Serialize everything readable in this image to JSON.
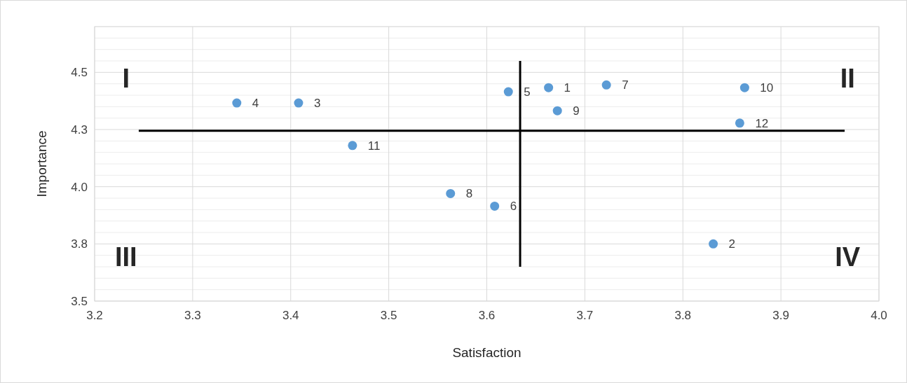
{
  "chart_data": {
    "type": "scatter",
    "xlabel": "Satisfaction",
    "ylabel": "Importance",
    "xlim": [
      3.2,
      4.0
    ],
    "xticks": [
      3.2,
      3.3,
      3.4,
      3.5,
      3.6,
      3.7,
      3.8,
      3.9,
      {
        "value": 4.0,
        "label": "4.0"
      }
    ],
    "ylim": [
      3.5,
      4.7
    ],
    "yticks": [
      3.5,
      {
        "value": 3.55,
        "label": null
      },
      {
        "value": 3.6,
        "label": null
      },
      {
        "value": 3.65,
        "label": null
      },
      {
        "value": 3.7,
        "label": null
      },
      {
        "value": 3.75,
        "label": "3.8"
      },
      {
        "value": 3.8,
        "label": null
      },
      {
        "value": 3.85,
        "label": null
      },
      {
        "value": 3.9,
        "label": null
      },
      {
        "value": 3.95,
        "label": null
      },
      {
        "value": 4.0,
        "label": "4.0"
      },
      {
        "value": 4.05,
        "label": null
      },
      {
        "value": 4.1,
        "label": null
      },
      {
        "value": 4.15,
        "label": null
      },
      {
        "value": 4.2,
        "label": null
      },
      {
        "value": 4.25,
        "label": "4.3"
      },
      {
        "value": 4.3,
        "label": null
      },
      {
        "value": 4.35,
        "label": null
      },
      {
        "value": 4.4,
        "label": null
      },
      {
        "value": 4.45,
        "label": null
      },
      4.5,
      {
        "value": 4.55,
        "label": null
      },
      {
        "value": 4.6,
        "label": null
      },
      {
        "value": 4.65,
        "label": null
      },
      {
        "value": 4.7,
        "label": null
      }
    ],
    "grid": true,
    "series": [
      {
        "color": "#5b9bd5",
        "marker": "circle",
        "x": [
          3.663,
          3.831,
          3.408,
          3.345,
          3.622,
          3.608,
          3.722,
          3.563,
          3.672,
          3.863,
          3.463,
          3.858
        ],
        "values": [
          4.433,
          3.75,
          4.366,
          4.366,
          4.415,
          3.915,
          4.445,
          3.97,
          4.332,
          4.433,
          4.18,
          4.278
        ]
      },
      {
        "type": "line",
        "color": "#000000",
        "x": [
          3.245,
          3.965
        ],
        "values": [
          4.245,
          4.245
        ]
      },
      {
        "type": "line",
        "color": "#000000",
        "x": [
          3.634,
          3.634
        ],
        "values": [
          3.65,
          4.55
        ]
      }
    ],
    "annotations": [
      "I",
      "II",
      "III",
      "IV",
      {
        "text": "1",
        "x": 3.663,
        "y": 4.433
      },
      {
        "text": "2",
        "x": 3.831,
        "y": 3.75
      },
      {
        "text": "3",
        "x": 3.408,
        "y": 4.366
      },
      {
        "text": "4",
        "x": 3.345,
        "y": 4.366
      },
      {
        "text": "5",
        "x": 3.622,
        "y": 4.415
      },
      {
        "text": "6",
        "x": 3.608,
        "y": 3.915
      },
      {
        "text": "7",
        "x": 3.722,
        "y": 4.445
      },
      {
        "text": "8",
        "x": 3.563,
        "y": 3.97
      },
      {
        "text": "9",
        "x": 3.672,
        "y": 4.332
      },
      {
        "text": "10",
        "x": 3.863,
        "y": 4.433
      },
      {
        "text": "11",
        "x": 3.463,
        "y": 4.18
      },
      {
        "text": "12",
        "x": 3.858,
        "y": 4.278
      }
    ]
  }
}
